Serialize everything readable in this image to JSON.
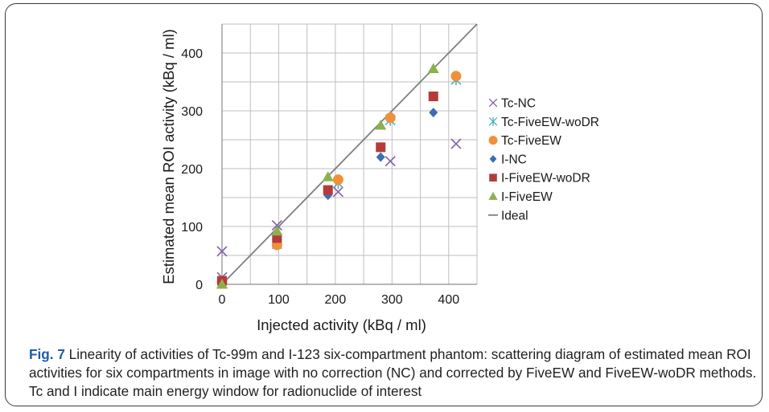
{
  "caption": {
    "label": "Fig. 7",
    "text": "Linearity of activities of Tc-99m and I-123 six-compartment phantom: scattering diagram of estimated mean ROI activities for six compartments in image with no correction (NC) and corrected by FiveEW and FiveEW-woDR methods. Tc and I indicate main energy window for radionuclide of interest"
  },
  "chart_data": {
    "type": "scatter",
    "xlabel": "Injected activity (kBq / ml)",
    "ylabel": "Estimated mean ROI activity (kBq / ml)",
    "xlim": [
      0,
      450
    ],
    "ylim": [
      0,
      450
    ],
    "xticks": [
      0,
      100,
      200,
      300,
      400
    ],
    "yticks": [
      0,
      100,
      200,
      300,
      400
    ],
    "grid": true,
    "legend_position": "right",
    "series": [
      {
        "name": "Tc-NC",
        "marker": "x",
        "color": "#7f5fa8",
        "points": [
          [
            0,
            57
          ],
          [
            0,
            12
          ],
          [
            97,
            102
          ],
          [
            205,
            160
          ],
          [
            297,
            213
          ],
          [
            413,
            243
          ]
        ]
      },
      {
        "name": "Tc-FiveEW-woDR",
        "marker": "asterisk",
        "color": "#3fa9c6",
        "points": [
          [
            0,
            2
          ],
          [
            97,
            70
          ],
          [
            205,
            175
          ],
          [
            297,
            284
          ],
          [
            413,
            354
          ]
        ]
      },
      {
        "name": "Tc-FiveEW",
        "marker": "circle",
        "color": "#f0903a",
        "points": [
          [
            0,
            4
          ],
          [
            97,
            68
          ],
          [
            205,
            181
          ],
          [
            297,
            288
          ],
          [
            413,
            360
          ]
        ]
      },
      {
        "name": "I-NC",
        "marker": "diamond",
        "color": "#3b6db1",
        "points": [
          [
            0,
            1
          ],
          [
            97,
            87
          ],
          [
            187,
            154
          ],
          [
            280,
            220
          ],
          [
            373,
            297
          ]
        ]
      },
      {
        "name": "I-FiveEW-woDR",
        "marker": "square",
        "color": "#b63a3a",
        "points": [
          [
            0,
            6
          ],
          [
            97,
            80
          ],
          [
            187,
            163
          ],
          [
            280,
            237
          ],
          [
            373,
            325
          ]
        ]
      },
      {
        "name": "I-FiveEW",
        "marker": "triangle",
        "color": "#8db04d",
        "points": [
          [
            0,
            0
          ],
          [
            97,
            92
          ],
          [
            187,
            186
          ],
          [
            280,
            275
          ],
          [
            373,
            373
          ]
        ]
      },
      {
        "name": "Ideal",
        "marker": "line",
        "color": "#7f7f7f",
        "points": [
          [
            0,
            0
          ],
          [
            450,
            450
          ]
        ]
      }
    ]
  }
}
